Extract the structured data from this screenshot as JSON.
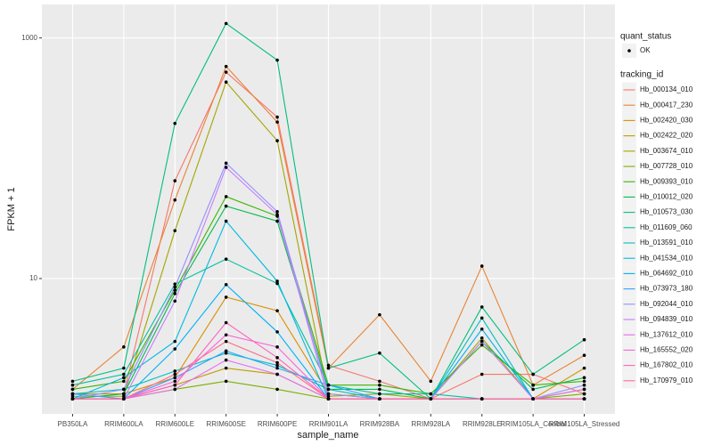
{
  "chart_data": {
    "type": "line",
    "y_label": "FPKM + 1",
    "x_label": "sample_name",
    "log_y": true,
    "grid": true,
    "categories": [
      "PB350LA",
      "RRIM600LA",
      "RRIM600LE",
      "RRIM600SE",
      "RRIM600PE",
      "RRIM901LA",
      "RRIM928BA",
      "RRIM928LA",
      "RRIM928LE",
      "RRIM105LA_Control",
      "RRIM105LA_Stressed"
    ],
    "ylim": [
      0.75,
      1900
    ],
    "yticks": [
      10,
      1000
    ],
    "point_color": "#000000",
    "shape_legend": {
      "title": "quant_status",
      "labels": [
        "OK"
      ]
    },
    "legend_title": "tracking_id",
    "series": [
      {
        "name": "Hb_000134_010",
        "color": "#F8766D",
        "values": [
          1.1,
          1.1,
          65,
          520,
          220,
          1.9,
          1.4,
          1.0,
          1.6,
          1.6,
          1.1
        ]
      },
      {
        "name": "Hb_000417_230",
        "color": "#EA8331",
        "values": [
          1.2,
          2.7,
          45,
          580,
          200,
          1.8,
          5.0,
          1.4,
          12.7,
          1.3,
          2.3
        ]
      },
      {
        "name": "Hb_002420_030",
        "color": "#D89000",
        "values": [
          1.1,
          1.1,
          1.5,
          7.0,
          5.4,
          1.1,
          1.0,
          1.0,
          1.0,
          1.0,
          1.8
        ]
      },
      {
        "name": "Hb_002422_020",
        "color": "#C09B00",
        "values": [
          1.0,
          1.0,
          1.3,
          1.8,
          1.6,
          1.0,
          1.0,
          1.0,
          1.0,
          1.0,
          1.0
        ]
      },
      {
        "name": "Hb_003674_010",
        "color": "#A3A500",
        "values": [
          1.05,
          1.05,
          25,
          430,
          140,
          1.05,
          1.1,
          1.0,
          3.2,
          1.0,
          1.2
        ]
      },
      {
        "name": "Hb_007728_010",
        "color": "#7CAE00",
        "values": [
          1.0,
          1.0,
          1.2,
          1.4,
          1.2,
          1.0,
          1.0,
          1.0,
          1.0,
          1.0,
          1.1
        ]
      },
      {
        "name": "Hb_009393_010",
        "color": "#39B600",
        "values": [
          1.2,
          1.4,
          8.0,
          48,
          33,
          1.3,
          1.3,
          1.1,
          2.8,
          1.3,
          1.4
        ]
      },
      {
        "name": "Hb_010012_020",
        "color": "#00BB4E",
        "values": [
          1.0,
          1.1,
          7.5,
          40,
          30,
          1.2,
          1.2,
          1.0,
          3.0,
          1.2,
          1.5
        ]
      },
      {
        "name": "Hb_010573_030",
        "color": "#00BF7D",
        "values": [
          1.4,
          1.8,
          195,
          1320,
          655,
          1.8,
          2.4,
          1.0,
          5.8,
          1.6,
          3.1
        ]
      },
      {
        "name": "Hb_011609_060",
        "color": "#00C1A3",
        "values": [
          1.3,
          1.6,
          9.0,
          14.5,
          9.1,
          1.3,
          1.1,
          1.1,
          1.0,
          1.0,
          1.0
        ]
      },
      {
        "name": "Hb_013591_010",
        "color": "#00BFC4",
        "values": [
          1.1,
          1.2,
          1.7,
          2.4,
          1.9,
          1.2,
          1.0,
          1.0,
          4.7,
          1.0,
          1.0
        ]
      },
      {
        "name": "Hb_041534_010",
        "color": "#00BAE0",
        "values": [
          1.0,
          1.5,
          3.0,
          30,
          9.5,
          1.0,
          1.0,
          1.0,
          1.0,
          1.0,
          1.0
        ]
      },
      {
        "name": "Hb_064692_010",
        "color": "#00B0F6",
        "values": [
          1.0,
          1.0,
          2.6,
          8.9,
          3.6,
          1.0,
          1.0,
          1.0,
          3.8,
          1.0,
          1.0
        ]
      },
      {
        "name": "Hb_073973_180",
        "color": "#35A2FF",
        "values": [
          1.1,
          1.0,
          1.5,
          2.5,
          1.8,
          1.3,
          1.0,
          1.0,
          1.0,
          1.0,
          1.0
        ]
      },
      {
        "name": "Hb_092044_010",
        "color": "#9590FF",
        "values": [
          1.0,
          1.2,
          8.5,
          91,
          36,
          1.1,
          1.0,
          1.0,
          1.0,
          1.0,
          1.3
        ]
      },
      {
        "name": "Hb_094839_010",
        "color": "#C77CFF",
        "values": [
          1.0,
          1.0,
          6.5,
          84,
          34,
          1.0,
          1.0,
          1.0,
          3.0,
          1.0,
          1.0
        ]
      },
      {
        "name": "Hb_137612_010",
        "color": "#E76BF3",
        "values": [
          1.0,
          1.0,
          1.2,
          2.1,
          1.6,
          1.0,
          1.0,
          1.0,
          1.0,
          1.0,
          1.2
        ]
      },
      {
        "name": "Hb_165552_020",
        "color": "#FA62DB",
        "values": [
          1.0,
          1.0,
          1.4,
          3.4,
          2.7,
          1.0,
          1.0,
          1.0,
          1.0,
          1.0,
          1.0
        ]
      },
      {
        "name": "Hb_167802_010",
        "color": "#FF62BC",
        "values": [
          1.0,
          1.0,
          1.3,
          4.3,
          2.2,
          1.0,
          1.0,
          1.0,
          1.0,
          1.0,
          1.0
        ]
      },
      {
        "name": "Hb_170979_010",
        "color": "#FF6C91",
        "values": [
          1.0,
          1.0,
          1.6,
          3.0,
          2.0,
          1.0,
          1.0,
          1.0,
          1.0,
          1.0,
          1.0
        ]
      }
    ]
  }
}
